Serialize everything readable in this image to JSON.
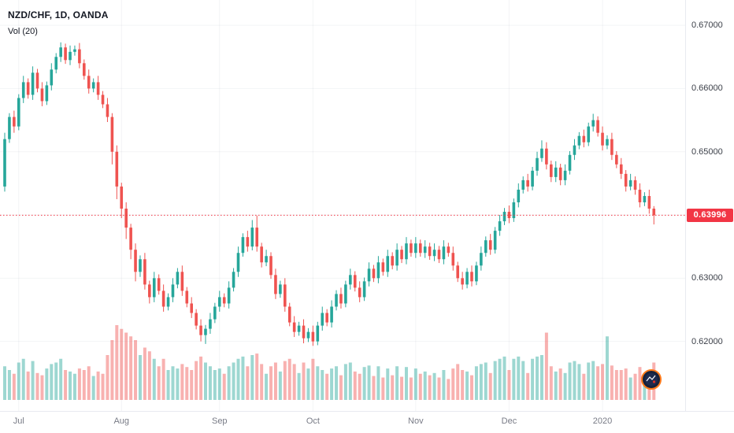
{
  "header": {
    "symbol_title": "NZD/CHF, 1D, OANDA",
    "indicator_label": "Vol (20)"
  },
  "colors": {
    "up": "#26a69a",
    "down": "#ef5350",
    "vol_up": "rgba(38,166,154,0.45)",
    "vol_down": "rgba(239,83,80,0.45)",
    "grid": "rgba(140,150,170,0.10)",
    "price_line": "#f23645",
    "badge_bg": "#f23645",
    "axis_text": "#3c4049",
    "muted_text": "#787b86"
  },
  "price_axis": {
    "labels": [
      {
        "text": "0.67000",
        "price": 0.67
      },
      {
        "text": "0.66000",
        "price": 0.66
      },
      {
        "text": "0.65000",
        "price": 0.65
      },
      {
        "text": "0.63000",
        "price": 0.63
      },
      {
        "text": "0.62000",
        "price": 0.62
      }
    ],
    "badge": {
      "text": "0.63996",
      "price": 0.63996
    }
  },
  "price_line": {
    "price": 0.63996,
    "style": "dotted"
  },
  "chart_data": {
    "type": "candlestick",
    "title": "NZD/CHF, 1D, OANDA",
    "symbol": "NZD/CHF",
    "timeframe": "1D",
    "exchange": "OANDA",
    "indicator": "Vol (20)",
    "ylim": [
      0.609,
      0.674
    ],
    "grid_h": [
      0.62,
      0.63,
      0.64,
      0.65,
      0.66,
      0.67
    ],
    "months": [
      {
        "label": "Jul",
        "i": 3
      },
      {
        "label": "Aug",
        "i": 25
      },
      {
        "label": "Sep",
        "i": 46
      },
      {
        "label": "Oct",
        "i": 66
      },
      {
        "label": "Nov",
        "i": 88
      },
      {
        "label": "Dec",
        "i": 108
      },
      {
        "label": "2020",
        "i": 128
      }
    ],
    "series_format": [
      "open",
      "high",
      "low",
      "close",
      "volume_rel"
    ],
    "candles": [
      [
        0.6445,
        0.653,
        0.6437,
        0.652,
        0.45
      ],
      [
        0.652,
        0.6561,
        0.6514,
        0.6555,
        0.4
      ],
      [
        0.6555,
        0.6565,
        0.653,
        0.654,
        0.35
      ],
      [
        0.654,
        0.6591,
        0.6534,
        0.6585,
        0.5
      ],
      [
        0.6585,
        0.662,
        0.6577,
        0.661,
        0.55
      ],
      [
        0.661,
        0.6616,
        0.6584,
        0.659,
        0.38
      ],
      [
        0.659,
        0.6635,
        0.6582,
        0.6625,
        0.52
      ],
      [
        0.6625,
        0.6631,
        0.6594,
        0.66,
        0.36
      ],
      [
        0.66,
        0.661,
        0.6572,
        0.658,
        0.33
      ],
      [
        0.658,
        0.6611,
        0.6574,
        0.6605,
        0.42
      ],
      [
        0.6605,
        0.664,
        0.6597,
        0.663,
        0.48
      ],
      [
        0.663,
        0.6656,
        0.6624,
        0.665,
        0.5
      ],
      [
        0.665,
        0.6673,
        0.6642,
        0.6665,
        0.55
      ],
      [
        0.6665,
        0.6671,
        0.6639,
        0.6645,
        0.4
      ],
      [
        0.6645,
        0.6668,
        0.6637,
        0.6658,
        0.38
      ],
      [
        0.6658,
        0.6668,
        0.6652,
        0.6662,
        0.35
      ],
      [
        0.6662,
        0.6672,
        0.6632,
        0.664,
        0.42
      ],
      [
        0.664,
        0.6646,
        0.6614,
        0.662,
        0.4
      ],
      [
        0.662,
        0.663,
        0.6592,
        0.66,
        0.45
      ],
      [
        0.66,
        0.6616,
        0.6594,
        0.661,
        0.32
      ],
      [
        0.661,
        0.662,
        0.6582,
        0.659,
        0.38
      ],
      [
        0.659,
        0.6596,
        0.6569,
        0.6575,
        0.35
      ],
      [
        0.6575,
        0.6585,
        0.6547,
        0.6555,
        0.6
      ],
      [
        0.6555,
        0.6561,
        0.648,
        0.65,
        0.8
      ],
      [
        0.65,
        0.651,
        0.6425,
        0.6445,
        1.0
      ],
      [
        0.6445,
        0.6451,
        0.6395,
        0.641,
        0.95
      ],
      [
        0.641,
        0.642,
        0.6362,
        0.638,
        0.9
      ],
      [
        0.638,
        0.6386,
        0.633,
        0.6345,
        0.85
      ],
      [
        0.6345,
        0.6355,
        0.6295,
        0.631,
        0.8
      ],
      [
        0.631,
        0.6336,
        0.6302,
        0.633,
        0.6
      ],
      [
        0.633,
        0.634,
        0.6282,
        0.629,
        0.7
      ],
      [
        0.629,
        0.6296,
        0.626,
        0.627,
        0.65
      ],
      [
        0.627,
        0.631,
        0.6262,
        0.63,
        0.55
      ],
      [
        0.63,
        0.6306,
        0.6274,
        0.628,
        0.45
      ],
      [
        0.628,
        0.629,
        0.6247,
        0.6255,
        0.55
      ],
      [
        0.6255,
        0.6276,
        0.6249,
        0.627,
        0.4
      ],
      [
        0.627,
        0.63,
        0.6262,
        0.629,
        0.45
      ],
      [
        0.629,
        0.6316,
        0.6284,
        0.631,
        0.42
      ],
      [
        0.631,
        0.632,
        0.6272,
        0.628,
        0.48
      ],
      [
        0.628,
        0.6286,
        0.6254,
        0.626,
        0.44
      ],
      [
        0.626,
        0.627,
        0.6237,
        0.6245,
        0.4
      ],
      [
        0.6245,
        0.6251,
        0.6219,
        0.6225,
        0.52
      ],
      [
        0.6225,
        0.6235,
        0.62,
        0.621,
        0.58
      ],
      [
        0.621,
        0.6226,
        0.6196,
        0.622,
        0.5
      ],
      [
        0.622,
        0.6245,
        0.6212,
        0.6235,
        0.45
      ],
      [
        0.6235,
        0.6261,
        0.6229,
        0.6255,
        0.4
      ],
      [
        0.6255,
        0.628,
        0.6247,
        0.627,
        0.42
      ],
      [
        0.627,
        0.6276,
        0.6254,
        0.626,
        0.35
      ],
      [
        0.626,
        0.6295,
        0.6252,
        0.6285,
        0.45
      ],
      [
        0.6285,
        0.6316,
        0.6279,
        0.631,
        0.5
      ],
      [
        0.631,
        0.635,
        0.6302,
        0.634,
        0.55
      ],
      [
        0.634,
        0.6371,
        0.6334,
        0.6365,
        0.58
      ],
      [
        0.6365,
        0.6375,
        0.6342,
        0.635,
        0.45
      ],
      [
        0.635,
        0.6392,
        0.6344,
        0.638,
        0.6
      ],
      [
        0.638,
        0.6399,
        0.6342,
        0.635,
        0.62
      ],
      [
        0.635,
        0.6356,
        0.6317,
        0.6325,
        0.48
      ],
      [
        0.6325,
        0.6345,
        0.6319,
        0.6335,
        0.35
      ],
      [
        0.6335,
        0.6341,
        0.6299,
        0.6305,
        0.45
      ],
      [
        0.6305,
        0.6315,
        0.6267,
        0.6275,
        0.5
      ],
      [
        0.6275,
        0.6296,
        0.6269,
        0.629,
        0.38
      ],
      [
        0.629,
        0.63,
        0.6247,
        0.6255,
        0.52
      ],
      [
        0.6255,
        0.6261,
        0.6224,
        0.623,
        0.55
      ],
      [
        0.623,
        0.624,
        0.6207,
        0.6215,
        0.48
      ],
      [
        0.6215,
        0.6231,
        0.6209,
        0.6225,
        0.36
      ],
      [
        0.6225,
        0.6235,
        0.6197,
        0.6205,
        0.5
      ],
      [
        0.6205,
        0.6221,
        0.6199,
        0.6215,
        0.42
      ],
      [
        0.6215,
        0.6225,
        0.6193,
        0.62,
        0.55
      ],
      [
        0.62,
        0.6231,
        0.6194,
        0.6225,
        0.45
      ],
      [
        0.6225,
        0.6255,
        0.6217,
        0.6245,
        0.4
      ],
      [
        0.6245,
        0.6251,
        0.6224,
        0.623,
        0.35
      ],
      [
        0.623,
        0.6265,
        0.6222,
        0.6255,
        0.42
      ],
      [
        0.6255,
        0.6281,
        0.6249,
        0.6275,
        0.45
      ],
      [
        0.6275,
        0.6285,
        0.6252,
        0.626,
        0.33
      ],
      [
        0.626,
        0.6296,
        0.6254,
        0.629,
        0.48
      ],
      [
        0.629,
        0.6315,
        0.6282,
        0.6305,
        0.5
      ],
      [
        0.6305,
        0.6311,
        0.6279,
        0.6285,
        0.38
      ],
      [
        0.6285,
        0.6295,
        0.6262,
        0.627,
        0.35
      ],
      [
        0.627,
        0.6301,
        0.6264,
        0.6295,
        0.44
      ],
      [
        0.6295,
        0.6325,
        0.6287,
        0.6315,
        0.46
      ],
      [
        0.6315,
        0.6321,
        0.6294,
        0.63,
        0.32
      ],
      [
        0.63,
        0.6335,
        0.6292,
        0.6325,
        0.45
      ],
      [
        0.6325,
        0.6331,
        0.6304,
        0.631,
        0.3
      ],
      [
        0.631,
        0.6345,
        0.6302,
        0.6335,
        0.42
      ],
      [
        0.6335,
        0.6341,
        0.6314,
        0.632,
        0.33
      ],
      [
        0.632,
        0.6355,
        0.6312,
        0.6345,
        0.45
      ],
      [
        0.6345,
        0.6351,
        0.6324,
        0.633,
        0.31
      ],
      [
        0.633,
        0.6365,
        0.6322,
        0.6355,
        0.44
      ],
      [
        0.6355,
        0.6361,
        0.6334,
        0.634,
        0.3
      ],
      [
        0.634,
        0.6365,
        0.6332,
        0.6355,
        0.42
      ],
      [
        0.6355,
        0.6361,
        0.6334,
        0.634,
        0.35
      ],
      [
        0.634,
        0.636,
        0.6332,
        0.635,
        0.38
      ],
      [
        0.635,
        0.6356,
        0.6329,
        0.6335,
        0.33
      ],
      [
        0.6335,
        0.6355,
        0.6327,
        0.6345,
        0.36
      ],
      [
        0.6345,
        0.6351,
        0.6324,
        0.633,
        0.3
      ],
      [
        0.633,
        0.636,
        0.6322,
        0.635,
        0.4
      ],
      [
        0.635,
        0.6356,
        0.6334,
        0.634,
        0.28
      ],
      [
        0.634,
        0.635,
        0.6312,
        0.632,
        0.42
      ],
      [
        0.632,
        0.6326,
        0.6294,
        0.63,
        0.48
      ],
      [
        0.63,
        0.631,
        0.6282,
        0.629,
        0.4
      ],
      [
        0.629,
        0.6316,
        0.6284,
        0.631,
        0.38
      ],
      [
        0.631,
        0.632,
        0.6287,
        0.6295,
        0.33
      ],
      [
        0.6295,
        0.6326,
        0.6289,
        0.632,
        0.45
      ],
      [
        0.632,
        0.635,
        0.6312,
        0.634,
        0.48
      ],
      [
        0.634,
        0.6366,
        0.6334,
        0.636,
        0.5
      ],
      [
        0.636,
        0.637,
        0.6337,
        0.6345,
        0.36
      ],
      [
        0.6345,
        0.6381,
        0.6339,
        0.6375,
        0.52
      ],
      [
        0.6375,
        0.64,
        0.6367,
        0.639,
        0.55
      ],
      [
        0.639,
        0.6411,
        0.6384,
        0.6405,
        0.58
      ],
      [
        0.6405,
        0.6415,
        0.6387,
        0.6395,
        0.4
      ],
      [
        0.6395,
        0.6426,
        0.6389,
        0.642,
        0.55
      ],
      [
        0.642,
        0.645,
        0.6412,
        0.644,
        0.58
      ],
      [
        0.644,
        0.6461,
        0.6434,
        0.6455,
        0.52
      ],
      [
        0.6455,
        0.6465,
        0.6437,
        0.6445,
        0.36
      ],
      [
        0.6445,
        0.6476,
        0.6439,
        0.647,
        0.55
      ],
      [
        0.647,
        0.65,
        0.6462,
        0.649,
        0.58
      ],
      [
        0.649,
        0.6518,
        0.6484,
        0.6505,
        0.6
      ],
      [
        0.6505,
        0.6515,
        0.6472,
        0.648,
        0.9
      ],
      [
        0.648,
        0.6486,
        0.6452,
        0.646,
        0.45
      ],
      [
        0.646,
        0.6485,
        0.6452,
        0.6475,
        0.38
      ],
      [
        0.6475,
        0.6481,
        0.6447,
        0.6455,
        0.42
      ],
      [
        0.6455,
        0.648,
        0.6447,
        0.647,
        0.36
      ],
      [
        0.647,
        0.6501,
        0.6464,
        0.6495,
        0.5
      ],
      [
        0.6495,
        0.652,
        0.6487,
        0.651,
        0.52
      ],
      [
        0.651,
        0.6531,
        0.6504,
        0.6525,
        0.48
      ],
      [
        0.6525,
        0.6535,
        0.6507,
        0.6515,
        0.35
      ],
      [
        0.6515,
        0.6546,
        0.6509,
        0.654,
        0.5
      ],
      [
        0.654,
        0.656,
        0.6532,
        0.655,
        0.52
      ],
      [
        0.655,
        0.6556,
        0.6524,
        0.653,
        0.45
      ],
      [
        0.653,
        0.654,
        0.6502,
        0.651,
        0.48
      ],
      [
        0.651,
        0.6526,
        0.6504,
        0.652,
        0.85
      ],
      [
        0.652,
        0.653,
        0.6487,
        0.6495,
        0.46
      ],
      [
        0.6495,
        0.6501,
        0.6474,
        0.648,
        0.4
      ],
      [
        0.648,
        0.649,
        0.6457,
        0.6465,
        0.4
      ],
      [
        0.6465,
        0.6471,
        0.6437,
        0.6445,
        0.42
      ],
      [
        0.6445,
        0.6465,
        0.6439,
        0.6455,
        0.3
      ],
      [
        0.6455,
        0.6461,
        0.6432,
        0.644,
        0.35
      ],
      [
        0.644,
        0.645,
        0.6412,
        0.642,
        0.44
      ],
      [
        0.642,
        0.6436,
        0.6414,
        0.643,
        0.28
      ],
      [
        0.643,
        0.644,
        0.6402,
        0.641,
        0.4
      ],
      [
        0.641,
        0.6414,
        0.6385,
        0.63996,
        0.5
      ]
    ]
  }
}
